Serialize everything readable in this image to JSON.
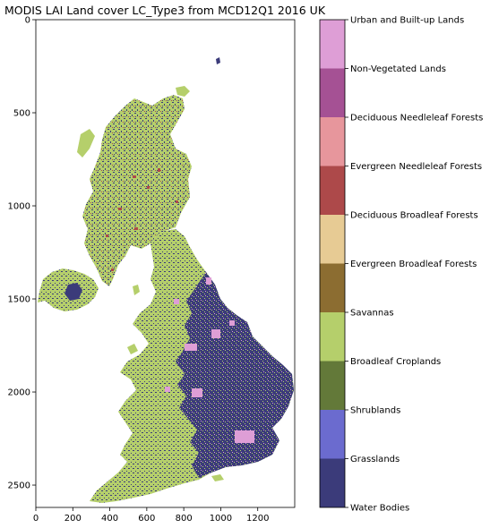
{
  "chart_data": {
    "type": "heatmap",
    "title": "MODIS LAI Land cover LC_Type3 from MCD12Q1 2016 UK",
    "xlabel": "",
    "ylabel": "",
    "xlim": [
      0,
      1400
    ],
    "ylim": [
      2620,
      0
    ],
    "x_ticks": [
      "0",
      "200",
      "400",
      "600",
      "800",
      "1000",
      "1200"
    ],
    "y_ticks": [
      "0",
      "500",
      "1000",
      "1500",
      "2000",
      "2500"
    ],
    "colorbar": {
      "classes": [
        {
          "label": "Water Bodies",
          "color": "#3b3b7a"
        },
        {
          "label": "Grasslands",
          "color": "#3b3b7a"
        },
        {
          "label": "Shrublands",
          "color": "#6b6bcf"
        },
        {
          "label": "Broadleaf Croplands",
          "color": "#637939"
        },
        {
          "label": "Savannas",
          "color": "#b5cf6b"
        },
        {
          "label": "Evergreen Broadleaf Forests",
          "color": "#8c6d31"
        },
        {
          "label": "Deciduous Broadleaf Forests",
          "color": "#e7cb94"
        },
        {
          "label": "Evergreen Needleleaf Forests",
          "color": "#ad494a"
        },
        {
          "label": "Deciduous Needleleaf Forests",
          "color": "#e7969c"
        },
        {
          "label": "Non-Vegetated Lands",
          "color": "#a55194"
        },
        {
          "label": "Urban and Built-up Lands",
          "color": "#de9ed6"
        }
      ]
    },
    "map_colors": {
      "background": "#ffffff",
      "water_grass": "#3b3b7a",
      "savannas": "#b5cf6b",
      "forest": "#ad494a",
      "urban": "#de9ed6"
    }
  }
}
